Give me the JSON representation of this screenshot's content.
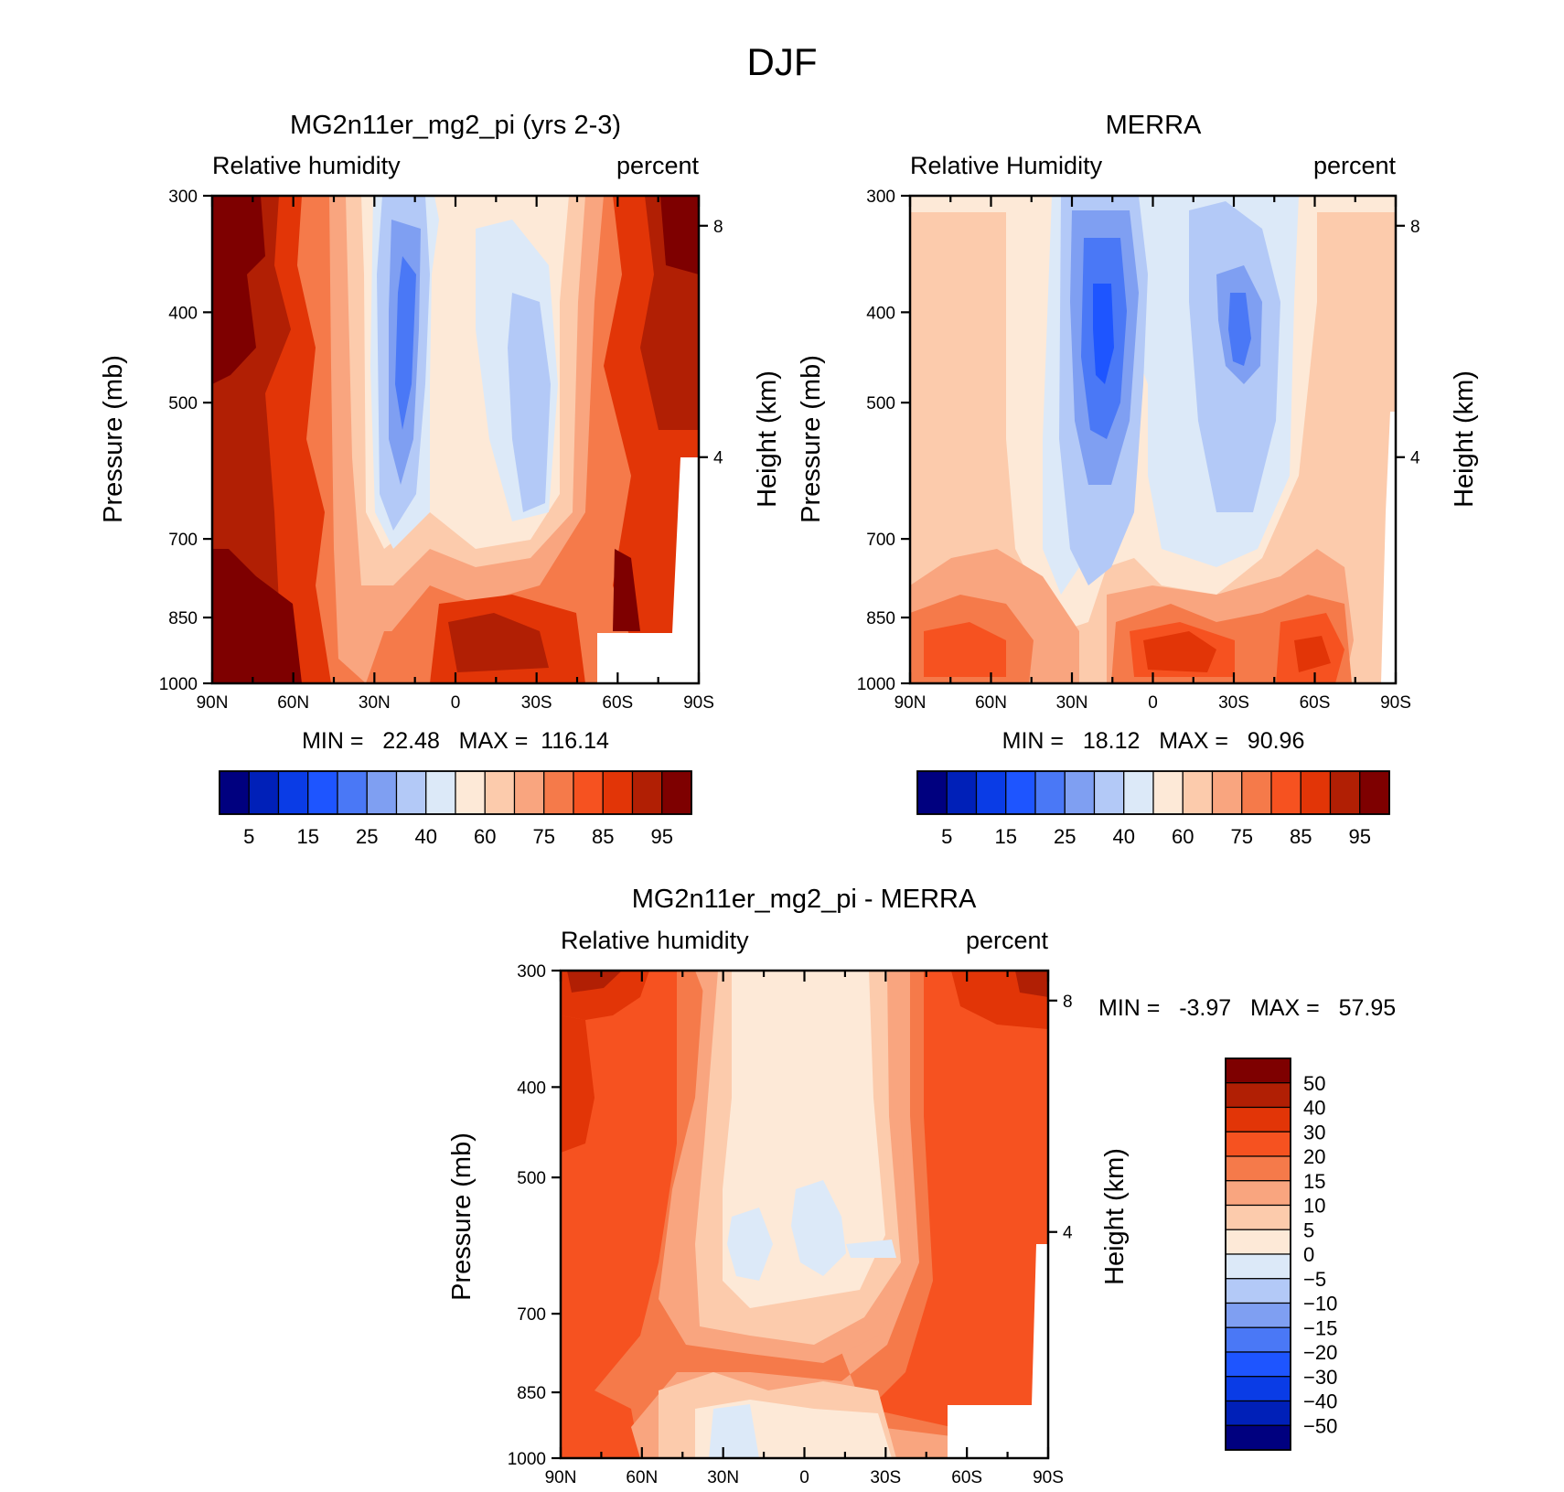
{
  "figure": {
    "title": "DJF"
  },
  "chart_data": [
    {
      "type": "heatmap",
      "title": "MG2n11er_mg2_pi (yrs 2-3)",
      "variable": "Relative humidity",
      "units": "percent",
      "xlabel": "",
      "ylabel": "Pressure (mb)",
      "right_label": "Height (km)",
      "x_ticks": [
        "90N",
        "60N",
        "30N",
        "0",
        "30S",
        "60S",
        "90S"
      ],
      "y_ticks": [
        "300",
        "400",
        "500",
        "700",
        "850",
        "1000"
      ],
      "right_ticks": [
        "8",
        "4"
      ],
      "min_label": "MIN =   22.48   MAX =  116.14",
      "stats": {
        "min": 22.48,
        "max": 116.14
      },
      "levels": [
        5,
        10,
        15,
        20,
        25,
        30,
        40,
        50,
        60,
        70,
        75,
        80,
        85,
        90,
        95
      ],
      "colorbar_labels": [
        "5",
        "15",
        "25",
        "40",
        "60",
        "75",
        "85",
        "95"
      ],
      "colors": [
        "#00007f",
        "#0020b8",
        "#0a3ce6",
        "#1e55ff",
        "#4a78f6",
        "#7f9ff2",
        "#b3c9f7",
        "#dce9f8",
        "#fde9d7",
        "#fccbac",
        "#f9a57f",
        "#f57a4a",
        "#f65220",
        "#e23507",
        "#b11f04",
        "#7e0000"
      ]
    },
    {
      "type": "heatmap",
      "title": "MERRA",
      "variable": "Relative Humidity",
      "units": "percent",
      "ylabel": "Pressure (mb)",
      "right_label": "Height (km)",
      "x_ticks": [
        "90N",
        "60N",
        "30N",
        "0",
        "30S",
        "60S",
        "90S"
      ],
      "y_ticks": [
        "300",
        "400",
        "500",
        "700",
        "850",
        "1000"
      ],
      "right_ticks": [
        "8",
        "4"
      ],
      "min_label": "MIN =   18.12   MAX =   90.96",
      "stats": {
        "min": 18.12,
        "max": 90.96
      },
      "levels": [
        5,
        10,
        15,
        20,
        25,
        30,
        40,
        50,
        60,
        70,
        75,
        80,
        85,
        90,
        95
      ],
      "colorbar_labels": [
        "5",
        "15",
        "25",
        "40",
        "60",
        "75",
        "85",
        "95"
      ],
      "colors": [
        "#00007f",
        "#0020b8",
        "#0a3ce6",
        "#1e55ff",
        "#4a78f6",
        "#7f9ff2",
        "#b3c9f7",
        "#dce9f8",
        "#fde9d7",
        "#fccbac",
        "#f9a57f",
        "#f57a4a",
        "#f65220",
        "#e23507",
        "#b11f04",
        "#7e0000"
      ]
    },
    {
      "type": "heatmap",
      "title": "MG2n11er_mg2_pi - MERRA",
      "variable": "Relative humidity",
      "units": "percent",
      "ylabel": "Pressure (mb)",
      "right_label": "Height (km)",
      "x_ticks": [
        "90N",
        "60N",
        "30N",
        "0",
        "30S",
        "60S",
        "90S"
      ],
      "y_ticks": [
        "300",
        "400",
        "500",
        "700",
        "850",
        "1000"
      ],
      "right_ticks": [
        "8",
        "4"
      ],
      "min_label": "MIN =   -3.97   MAX =   57.95",
      "stats": {
        "min": -3.97,
        "max": 57.95
      },
      "levels": [
        -50,
        -40,
        -30,
        -20,
        -15,
        -10,
        -5,
        0,
        5,
        10,
        15,
        20,
        30,
        40,
        50
      ],
      "colorbar_labels": [
        "50",
        "40",
        "30",
        "20",
        "15",
        "10",
        "5",
        "0",
        "-5",
        "-10",
        "-15",
        "-20",
        "-30",
        "-40",
        "-50"
      ],
      "colors": [
        "#7e0000",
        "#b11f04",
        "#e23507",
        "#f65220",
        "#f57a4a",
        "#f9a57f",
        "#fccbac",
        "#fde9d7",
        "#dce9f8",
        "#b3c9f7",
        "#7f9ff2",
        "#4a78f6",
        "#1e55ff",
        "#0a3ce6",
        "#0020b8",
        "#00007f"
      ]
    }
  ]
}
